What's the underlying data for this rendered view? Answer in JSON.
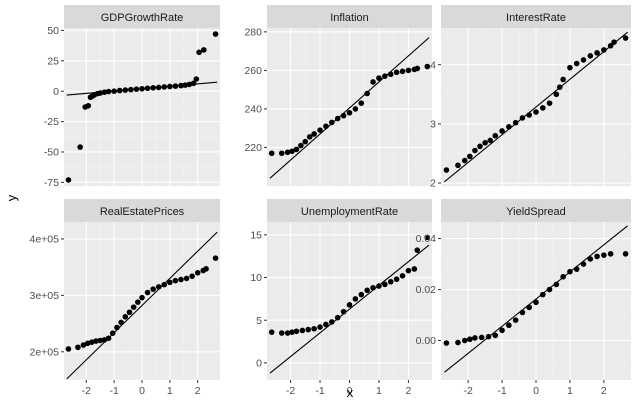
{
  "colors": {
    "panel_background": "#ebebeb",
    "strip_background": "#d9d9d9",
    "grid_major": "#ffffff",
    "grid_minor": "#f3f3f3",
    "points": "#000000",
    "reference_line": "#000000",
    "tick_text": "#4d4d4d"
  },
  "axes": {
    "xlabel": "x",
    "ylabel": "y"
  },
  "chart_data": [
    {
      "type": "scatter",
      "title": "GDPGrowthRate",
      "xlim": [
        -2.8,
        2.8
      ],
      "ylim": [
        -78,
        52
      ],
      "xticks": [
        -2,
        -1,
        0,
        1,
        2
      ],
      "xtick_labels": [
        "-2",
        "-1",
        "0",
        "1",
        "2"
      ],
      "yticks": [
        -75,
        -50,
        -25,
        0,
        25,
        50
      ],
      "ytick_labels": [
        "-75",
        "-50",
        "-25",
        "0",
        "25",
        "50"
      ],
      "show_xtick_labels": false,
      "show_ytick_labels": true,
      "line": {
        "x": [
          -2.7,
          2.7
        ],
        "y": [
          -3.2,
          7.4
        ]
      },
      "points": {
        "x": [
          -2.64,
          -2.22,
          -2.04,
          -1.93,
          -1.85,
          -1.78,
          -1.71,
          -1.6,
          -1.5,
          -1.35,
          -1.2,
          -1,
          -0.8,
          -0.6,
          -0.4,
          -0.2,
          0,
          0.2,
          0.4,
          0.6,
          0.8,
          1,
          1.2,
          1.4,
          1.55,
          1.7,
          1.85,
          1.95,
          2.05,
          2.22,
          2.64
        ],
        "y": [
          -73,
          -46,
          -13,
          -12,
          -5,
          -4,
          -3,
          -2,
          -1.5,
          -0.8,
          -0.3,
          0,
          0.5,
          0.9,
          1.3,
          1.7,
          2,
          2.4,
          2.8,
          3.1,
          3.5,
          3.9,
          4.2,
          4.6,
          5,
          5.6,
          6.5,
          10,
          32,
          34,
          47
        ]
      }
    },
    {
      "type": "scatter",
      "title": "Inflation",
      "xlim": [
        -2.8,
        2.8
      ],
      "ylim": [
        200,
        282
      ],
      "xticks": [
        -2,
        -1,
        0,
        1,
        2
      ],
      "xtick_labels": [
        "-2",
        "-1",
        "0",
        "1",
        "2"
      ],
      "yticks": [
        220,
        240,
        260,
        280
      ],
      "ytick_labels": [
        "220",
        "240",
        "260",
        "280"
      ],
      "show_xtick_labels": false,
      "show_ytick_labels": true,
      "line": {
        "x": [
          -2.7,
          2.7
        ],
        "y": [
          204,
          277
        ]
      },
      "points": {
        "x": [
          -2.64,
          -2.3,
          -2.1,
          -1.95,
          -1.8,
          -1.65,
          -1.5,
          -1.35,
          -1.2,
          -1,
          -0.8,
          -0.6,
          -0.4,
          -0.2,
          0,
          0.2,
          0.4,
          0.6,
          0.8,
          1,
          1.2,
          1.4,
          1.6,
          1.8,
          2,
          2.2,
          2.3,
          2.64
        ],
        "y": [
          217,
          217,
          217.5,
          218,
          219,
          221,
          223,
          225.5,
          227,
          229,
          231,
          233,
          235,
          236.5,
          238,
          240,
          243,
          248,
          254,
          256,
          257,
          258,
          259,
          259.5,
          260,
          260.5,
          261,
          262
        ]
      }
    },
    {
      "type": "scatter",
      "title": "InterestRate",
      "xlim": [
        -2.8,
        2.8
      ],
      "ylim": [
        1.95,
        4.62
      ],
      "xticks": [
        -2,
        -1,
        0,
        1,
        2
      ],
      "xtick_labels": [
        "-2",
        "-1",
        "0",
        "1",
        "2"
      ],
      "yticks": [
        2,
        3,
        4
      ],
      "ytick_labels": [
        "2",
        "3",
        "4"
      ],
      "show_xtick_labels": false,
      "show_ytick_labels": true,
      "line": {
        "x": [
          -2.7,
          2.7
        ],
        "y": [
          2.02,
          4.55
        ]
      },
      "points": {
        "x": [
          -2.64,
          -2.3,
          -2.1,
          -1.95,
          -1.8,
          -1.65,
          -1.5,
          -1.35,
          -1.2,
          -1,
          -0.8,
          -0.6,
          -0.4,
          -0.2,
          0,
          0.2,
          0.4,
          0.6,
          0.7,
          0.8,
          1,
          1.2,
          1.4,
          1.6,
          1.8,
          2,
          2.2,
          2.3,
          2.64
        ],
        "y": [
          2.22,
          2.3,
          2.38,
          2.45,
          2.55,
          2.62,
          2.68,
          2.72,
          2.8,
          2.88,
          2.95,
          3.02,
          3.1,
          3.15,
          3.2,
          3.27,
          3.35,
          3.5,
          3.62,
          3.75,
          3.95,
          4.02,
          4.08,
          4.15,
          4.2,
          4.25,
          4.32,
          4.38,
          4.45
        ]
      }
    },
    {
      "type": "scatter",
      "title": "RealEstatePrices",
      "xlim": [
        -2.8,
        2.8
      ],
      "ylim": [
        150000,
        430000
      ],
      "xticks": [
        -2,
        -1,
        0,
        1,
        2
      ],
      "xtick_labels": [
        "-2",
        "-1",
        "0",
        "1",
        "2"
      ],
      "yticks": [
        200000,
        300000,
        400000
      ],
      "ytick_labels": [
        "2e+05",
        "3e+05",
        "4e+05"
      ],
      "show_xtick_labels": true,
      "show_ytick_labels": true,
      "line": {
        "x": [
          -2.7,
          2.7
        ],
        "y": [
          152000,
          412000
        ]
      },
      "points": {
        "x": [
          -2.64,
          -2.3,
          -2.1,
          -1.95,
          -1.8,
          -1.65,
          -1.5,
          -1.35,
          -1.2,
          -1.05,
          -0.9,
          -0.75,
          -0.6,
          -0.45,
          -0.3,
          -0.15,
          0,
          0.2,
          0.4,
          0.6,
          0.8,
          1,
          1.2,
          1.4,
          1.6,
          1.8,
          2,
          2.2,
          2.3,
          2.64
        ],
        "y": [
          205000,
          208000,
          212000,
          215000,
          217000,
          219000,
          220000,
          221000,
          224000,
          233000,
          243000,
          252000,
          262000,
          270000,
          279000,
          288000,
          296000,
          305000,
          311000,
          315000,
          319000,
          323000,
          326000,
          328000,
          330000,
          334000,
          340000,
          344000,
          347000,
          366000
        ]
      }
    },
    {
      "type": "scatter",
      "title": "UnemploymentRate",
      "xlim": [
        -2.8,
        2.8
      ],
      "ylim": [
        -2,
        16.5
      ],
      "xticks": [
        -2,
        -1,
        0,
        1,
        2
      ],
      "xtick_labels": [
        "-2",
        "-1",
        "0",
        "1",
        "2"
      ],
      "yticks": [
        0,
        5,
        10,
        15
      ],
      "ytick_labels": [
        "0",
        "5",
        "10",
        "15"
      ],
      "show_xtick_labels": true,
      "show_ytick_labels": true,
      "line": {
        "x": [
          -2.7,
          2.7
        ],
        "y": [
          -1.2,
          13.8
        ]
      },
      "points": {
        "x": [
          -2.64,
          -2.3,
          -2.1,
          -1.95,
          -1.8,
          -1.6,
          -1.4,
          -1.2,
          -1,
          -0.8,
          -0.6,
          -0.4,
          -0.2,
          0,
          0.2,
          0.4,
          0.6,
          0.8,
          1,
          1.2,
          1.4,
          1.6,
          1.8,
          2,
          2.2,
          2.3,
          2.64
        ],
        "y": [
          3.6,
          3.5,
          3.5,
          3.6,
          3.7,
          3.8,
          3.9,
          4,
          4.2,
          4.5,
          4.8,
          5.3,
          6,
          6.8,
          7.5,
          8,
          8.5,
          8.8,
          9,
          9.2,
          9.5,
          9.8,
          10.2,
          10.8,
          11,
          13.2,
          14.7
        ]
      }
    },
    {
      "type": "scatter",
      "title": "YieldSpread",
      "xlim": [
        -2.8,
        2.8
      ],
      "ylim": [
        -0.0155,
        0.0465
      ],
      "xticks": [
        -2,
        -1,
        0,
        1,
        2
      ],
      "xtick_labels": [
        "-2",
        "-1",
        "0",
        "1",
        "2"
      ],
      "yticks": [
        0,
        0.02,
        0.04
      ],
      "ytick_labels": [
        "0.00",
        "0.02",
        "0.04"
      ],
      "show_xtick_labels": true,
      "show_ytick_labels": true,
      "line": {
        "x": [
          -2.7,
          2.7
        ],
        "y": [
          -0.0125,
          0.045
        ]
      },
      "points": {
        "x": [
          -2.64,
          -2.3,
          -2.1,
          -1.95,
          -1.8,
          -1.6,
          -1.4,
          -1.2,
          -1,
          -0.8,
          -0.6,
          -0.4,
          -0.2,
          0,
          0.2,
          0.4,
          0.6,
          0.8,
          1,
          1.2,
          1.4,
          1.6,
          1.8,
          2,
          2.2,
          2.64
        ],
        "y": [
          -0.001,
          -0.0008,
          0,
          0.0005,
          0.001,
          0.0012,
          0.0015,
          0.002,
          0.004,
          0.006,
          0.008,
          0.011,
          0.013,
          0.015,
          0.018,
          0.02,
          0.022,
          0.025,
          0.027,
          0.028,
          0.03,
          0.032,
          0.033,
          0.0335,
          0.034,
          0.034
        ]
      }
    }
  ]
}
